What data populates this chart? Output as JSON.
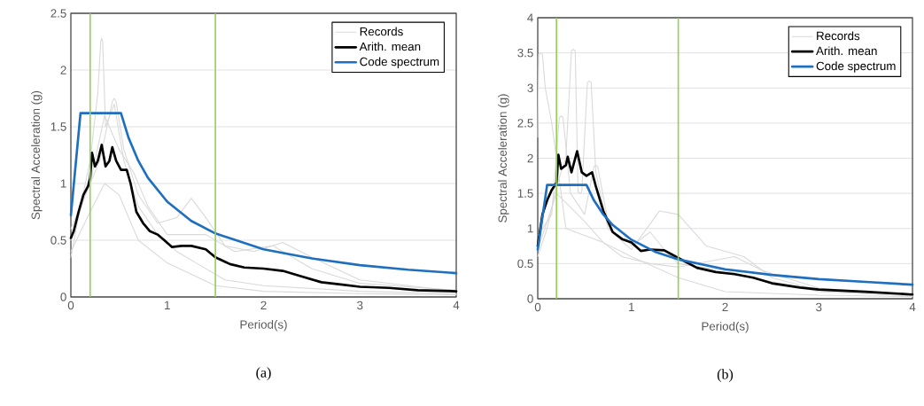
{
  "chart_data": [
    {
      "type": "line",
      "title": "(a)",
      "xlabel": "Period(s)",
      "ylabel": "Spectral Acceleration (g)",
      "xlim": [
        0,
        4
      ],
      "ylim": [
        0,
        2.5
      ],
      "xticks": [
        0,
        1,
        2,
        3,
        4
      ],
      "yticks": [
        0,
        0.5,
        1,
        1.5,
        2,
        2.5
      ],
      "grid": "y",
      "legend": "top right",
      "ref_lines": [
        {
          "axis": "x",
          "value": 0.2,
          "color": "#92d050"
        },
        {
          "axis": "x",
          "value": 1.5,
          "color": "#92d050"
        }
      ],
      "series": [
        {
          "name": "Records",
          "color": "#d9d9d9",
          "x": [
            0,
            0.1,
            0.2,
            0.28,
            0.31,
            0.32,
            0.33,
            0.36,
            0.45,
            0.55,
            0.7,
            0.9,
            1.1,
            1.3,
            1.6,
            2,
            3,
            4
          ],
          "values": [
            0.35,
            0.8,
            1.2,
            1.8,
            2.25,
            2.28,
            2.25,
            1.5,
            1.7,
            1.2,
            0.8,
            0.55,
            0.4,
            0.3,
            0.15,
            0.1,
            0.05,
            0.03
          ]
        },
        {
          "color": "#d9d9d9",
          "x": [
            0,
            0.15,
            0.3,
            0.43,
            0.45,
            0.47,
            0.55,
            0.7,
            0.9,
            1.1,
            1.25,
            1.4,
            1.6,
            1.9,
            2.2,
            2.5,
            3,
            4
          ],
          "values": [
            0.5,
            0.9,
            1.2,
            1.72,
            1.75,
            1.72,
            1.3,
            0.9,
            0.65,
            0.7,
            0.87,
            0.7,
            0.45,
            0.4,
            0.48,
            0.35,
            0.15,
            0.05
          ]
        },
        {
          "color": "#d9d9d9",
          "x": [
            0,
            0.2,
            0.35,
            0.5,
            0.7,
            1.0,
            1.5,
            2,
            3,
            4
          ],
          "values": [
            0.4,
            0.75,
            1.0,
            0.9,
            0.5,
            0.3,
            0.1,
            0.05,
            0.03,
            0.02
          ]
        },
        {
          "color": "#d9d9d9",
          "x": [
            0,
            0.2,
            0.35,
            0.5,
            0.65,
            0.8,
            1.0,
            1.4,
            1.7,
            2.1,
            2.5,
            3,
            4
          ],
          "values": [
            0.6,
            1.0,
            1.6,
            1.3,
            1.1,
            0.8,
            0.55,
            0.55,
            0.4,
            0.45,
            0.25,
            0.12,
            0.06
          ]
        },
        {
          "name": "Arith. mean",
          "color": "#000000",
          "x": [
            0,
            0.03,
            0.08,
            0.13,
            0.18,
            0.2,
            0.22,
            0.25,
            0.28,
            0.32,
            0.36,
            0.4,
            0.43,
            0.47,
            0.52,
            0.58,
            0.62,
            0.68,
            0.75,
            0.82,
            0.9,
            0.97,
            1.05,
            1.15,
            1.25,
            1.4,
            1.5,
            1.65,
            1.8,
            2.0,
            2.2,
            2.4,
            2.6,
            2.8,
            3.0,
            3.3,
            3.6,
            4
          ],
          "values": [
            0.52,
            0.58,
            0.75,
            0.9,
            0.98,
            1.05,
            1.27,
            1.15,
            1.2,
            1.34,
            1.15,
            1.2,
            1.32,
            1.2,
            1.12,
            1.12,
            1.0,
            0.75,
            0.65,
            0.58,
            0.55,
            0.5,
            0.44,
            0.45,
            0.45,
            0.42,
            0.35,
            0.29,
            0.26,
            0.25,
            0.23,
            0.18,
            0.13,
            0.11,
            0.09,
            0.08,
            0.06,
            0.05
          ]
        },
        {
          "name": "Code spectrum",
          "color": "#1f6fc0",
          "x": [
            0,
            0.1,
            0.52,
            0.6,
            0.7,
            0.8,
            1.0,
            1.25,
            1.5,
            2,
            2.5,
            3,
            3.5,
            4
          ],
          "values": [
            0.72,
            1.62,
            1.62,
            1.4,
            1.2,
            1.05,
            0.84,
            0.67,
            0.56,
            0.42,
            0.34,
            0.28,
            0.24,
            0.21
          ]
        }
      ]
    },
    {
      "type": "line",
      "title": "(b)",
      "xlabel": "Period(s)",
      "ylabel": "Spectral Acceleration (g)",
      "xlim": [
        0,
        4
      ],
      "ylim": [
        0,
        4
      ],
      "xticks": [
        0,
        1,
        2,
        3,
        4
      ],
      "yticks": [
        0,
        0.5,
        1,
        1.5,
        2,
        2.5,
        3,
        3.5,
        4
      ],
      "grid": "y",
      "legend": "top right",
      "ref_lines": [
        {
          "axis": "x",
          "value": 0.2,
          "color": "#92d050"
        },
        {
          "axis": "x",
          "value": 1.5,
          "color": "#92d050"
        }
      ],
      "series": [
        {
          "name": "Records",
          "color": "#d9d9d9",
          "x": [
            0,
            0.01,
            0.03,
            0.05,
            0.08,
            0.15,
            0.2,
            0.3,
            0.5,
            0.7,
            1.0,
            1.5,
            2,
            3,
            4
          ],
          "values": [
            2.3,
            3.48,
            3.5,
            3.48,
            3.0,
            2.5,
            2.0,
            1.0,
            0.9,
            0.8,
            0.6,
            0.3,
            0.1,
            0.05,
            0.03
          ]
        },
        {
          "color": "#d9d9d9",
          "x": [
            0,
            0.1,
            0.2,
            0.3,
            0.36,
            0.38,
            0.4,
            0.43,
            0.45,
            0.47,
            0.53,
            0.55,
            0.57,
            0.62,
            0.75,
            1.0,
            1.3,
            1.5,
            1.8,
            2.2,
            2.5,
            3,
            4
          ],
          "values": [
            0.6,
            1.0,
            1.6,
            2.0,
            3.53,
            3.55,
            3.53,
            1.52,
            1.5,
            1.52,
            3.08,
            3.1,
            3.08,
            1.8,
            1.0,
            0.7,
            1.25,
            1.2,
            0.75,
            0.6,
            0.3,
            0.12,
            0.05
          ]
        },
        {
          "color": "#d9d9d9",
          "x": [
            0,
            0.15,
            0.23,
            0.25,
            0.27,
            0.35,
            0.5,
            0.6,
            0.62,
            0.64,
            0.75,
            0.9,
            1.0,
            1.2,
            1.35,
            1.5,
            2.0,
            2.3,
            3,
            4
          ],
          "values": [
            0.9,
            1.2,
            2.58,
            2.6,
            2.58,
            1.5,
            1.2,
            1.88,
            1.9,
            1.88,
            1.1,
            0.95,
            0.75,
            0.95,
            0.7,
            0.5,
            0.4,
            0.3,
            0.1,
            0.04
          ]
        },
        {
          "color": "#d9d9d9",
          "x": [
            0,
            0.2,
            0.35,
            0.5,
            0.7,
            0.9,
            1.2,
            1.5,
            2.1,
            2.4,
            3,
            4
          ],
          "values": [
            0.7,
            1.5,
            1.3,
            1.1,
            0.8,
            0.6,
            0.5,
            0.45,
            0.6,
            0.4,
            0.15,
            0.05
          ]
        },
        {
          "name": "Arith. mean",
          "color": "#000000",
          "x": [
            0,
            0.05,
            0.1,
            0.15,
            0.2,
            0.22,
            0.25,
            0.3,
            0.32,
            0.36,
            0.42,
            0.47,
            0.52,
            0.58,
            0.62,
            0.7,
            0.8,
            0.9,
            1.0,
            1.1,
            1.2,
            1.35,
            1.5,
            1.7,
            1.9,
            2.1,
            2.3,
            2.5,
            2.8,
            3.0,
            3.5,
            4
          ],
          "values": [
            0.75,
            1.2,
            1.4,
            1.55,
            1.65,
            2.05,
            1.85,
            1.9,
            2.02,
            1.8,
            2.1,
            1.8,
            1.75,
            1.8,
            1.6,
            1.25,
            0.95,
            0.85,
            0.8,
            0.68,
            0.7,
            0.69,
            0.58,
            0.44,
            0.38,
            0.35,
            0.3,
            0.22,
            0.16,
            0.13,
            0.1,
            0.06
          ]
        },
        {
          "name": "Code spectrum",
          "color": "#1f6fc0",
          "x": [
            0,
            0.1,
            0.52,
            0.6,
            0.7,
            0.8,
            1.0,
            1.25,
            1.5,
            2,
            2.5,
            3,
            3.5,
            4
          ],
          "values": [
            0.7,
            1.62,
            1.62,
            1.4,
            1.2,
            1.05,
            0.84,
            0.67,
            0.56,
            0.42,
            0.34,
            0.28,
            0.24,
            0.2
          ]
        }
      ]
    }
  ]
}
